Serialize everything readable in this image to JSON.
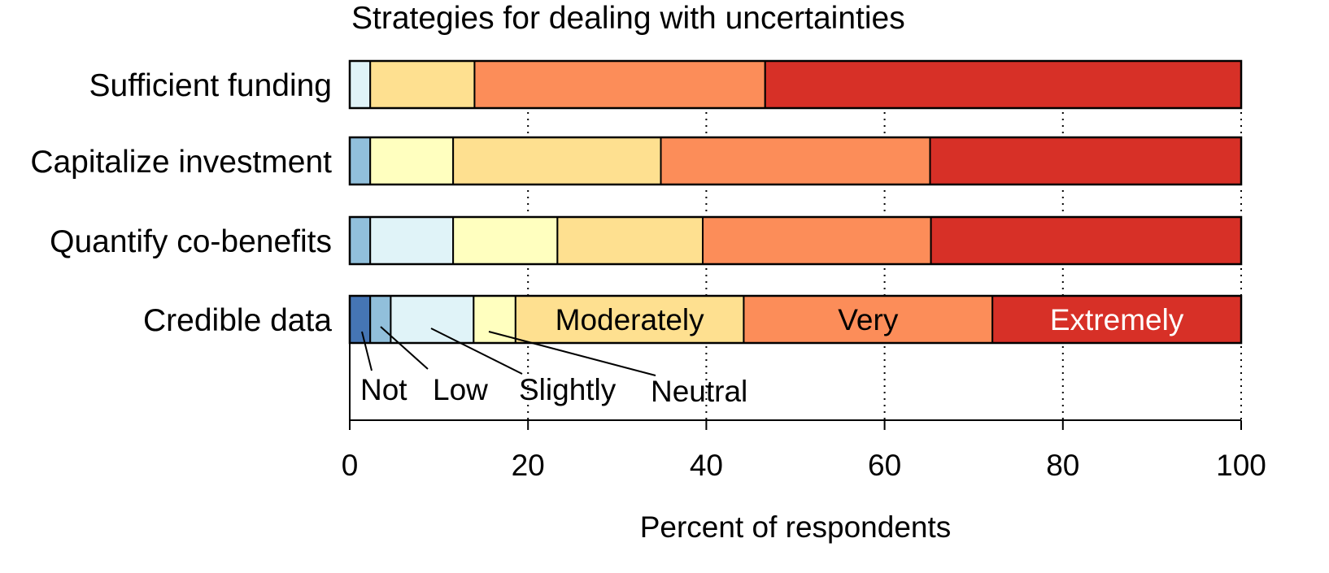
{
  "chart_data": {
    "type": "bar",
    "orientation": "horizontal",
    "stacked": true,
    "title": "Strategies for dealing with uncertainties",
    "xlabel": "Percent of respondents",
    "ylabel": "",
    "xlim": [
      0,
      100
    ],
    "xticks": [
      0,
      20,
      40,
      60,
      80,
      100
    ],
    "grid": "vertical dotted lines at x ticks",
    "categories": [
      "Sufficient funding",
      "Capitalize investment",
      "Quantify co-benefits",
      "Credible data"
    ],
    "series": [
      {
        "name": "Not",
        "color": "#4575b4",
        "values": [
          0,
          0,
          0,
          2.3
        ]
      },
      {
        "name": "Low",
        "color": "#91bfdb",
        "values": [
          0,
          2.3,
          2.3,
          2.3
        ]
      },
      {
        "name": "Slightly",
        "color": "#e0f3f8",
        "values": [
          2.3,
          0,
          9.3,
          9.3
        ]
      },
      {
        "name": "Neutral",
        "color": "#ffffbf",
        "values": [
          0,
          9.3,
          11.7,
          4.7
        ]
      },
      {
        "name": "Moderately",
        "color": "#fee090",
        "values": [
          11.7,
          23.3,
          16.3,
          25.6
        ]
      },
      {
        "name": "Very",
        "color": "#fc8d59",
        "values": [
          32.6,
          30.2,
          25.6,
          27.9
        ]
      },
      {
        "name": "Extremely",
        "color": "#d73027",
        "values": [
          53.4,
          34.9,
          34.8,
          27.9
        ]
      }
    ],
    "in_bar_labels": [
      "Moderately",
      "Very",
      "Extremely"
    ],
    "callout_labels": [
      "Not",
      "Low",
      "Slightly",
      "Neutral"
    ]
  }
}
